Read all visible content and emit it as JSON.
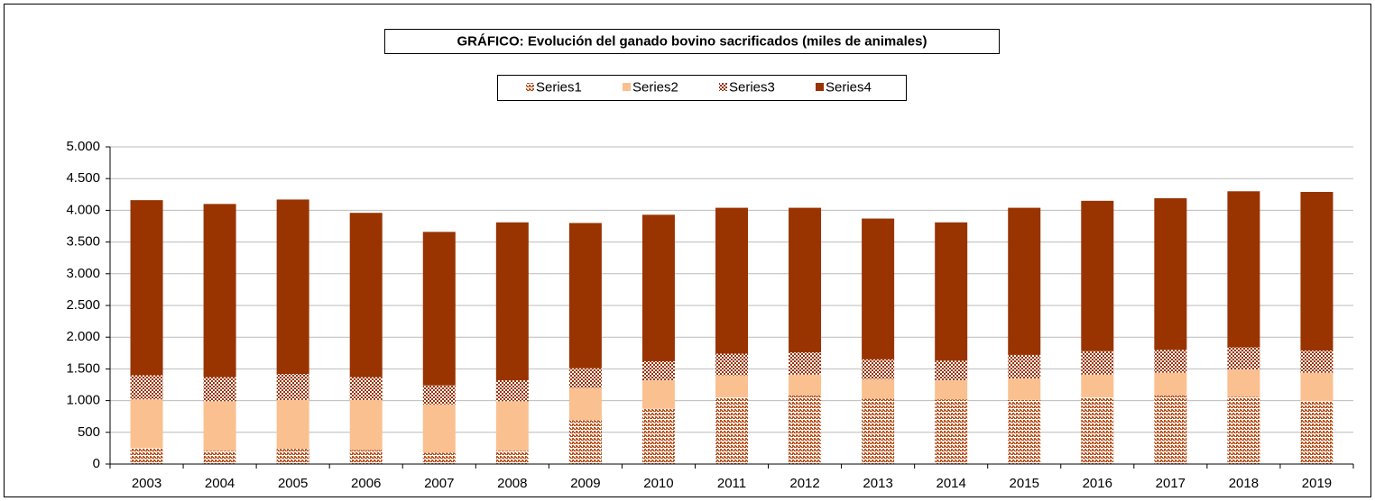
{
  "chart_data": {
    "type": "stacked_bar",
    "title": "GRÁFICO: Evolución del ganado bovino sacrificados (miles de animales)",
    "categories": [
      "2003",
      "2004",
      "2005",
      "2006",
      "2007",
      "2008",
      "2009",
      "2010",
      "2011",
      "2012",
      "2013",
      "2014",
      "2015",
      "2016",
      "2017",
      "2018",
      "2019"
    ],
    "series": [
      {
        "name": "Series1",
        "color": "#b8501c",
        "pattern": "weave",
        "values": [
          250,
          210,
          240,
          220,
          180,
          210,
          690,
          870,
          1050,
          1080,
          1030,
          1020,
          1010,
          1050,
          1080,
          1060,
          990
        ]
      },
      {
        "name": "Series2",
        "color": "#fac090",
        "pattern": "solid",
        "values": [
          770,
          780,
          770,
          790,
          760,
          780,
          510,
          450,
          350,
          330,
          310,
          300,
          340,
          360,
          360,
          430,
          450
        ]
      },
      {
        "name": "Series3",
        "color": "#993300",
        "pattern": "checker",
        "values": [
          380,
          380,
          410,
          360,
          300,
          330,
          310,
          300,
          340,
          350,
          310,
          310,
          370,
          370,
          360,
          350,
          350
        ]
      },
      {
        "name": "Series4",
        "color": "#993300",
        "pattern": "solid",
        "values": [
          2760,
          2730,
          2750,
          2590,
          2420,
          2490,
          2290,
          2310,
          2300,
          2280,
          2220,
          2180,
          2320,
          2370,
          2390,
          2460,
          2500
        ]
      }
    ],
    "ylim": [
      0,
      5000
    ],
    "yticks": [
      0,
      500,
      {
        "value": 1000,
        "label": "1.000"
      },
      {
        "value": 1500,
        "label": "1.500"
      },
      {
        "value": 2000,
        "label": "2.000"
      },
      {
        "value": 2500,
        "label": "2.500"
      },
      {
        "value": 3000,
        "label": "3.000"
      },
      {
        "value": 3500,
        "label": "3.500"
      },
      {
        "value": 4000,
        "label": "4.000"
      },
      {
        "value": 4500,
        "label": "4.500"
      },
      {
        "value": 5000,
        "label": "5.000"
      }
    ],
    "grid": true,
    "legend": "top"
  }
}
